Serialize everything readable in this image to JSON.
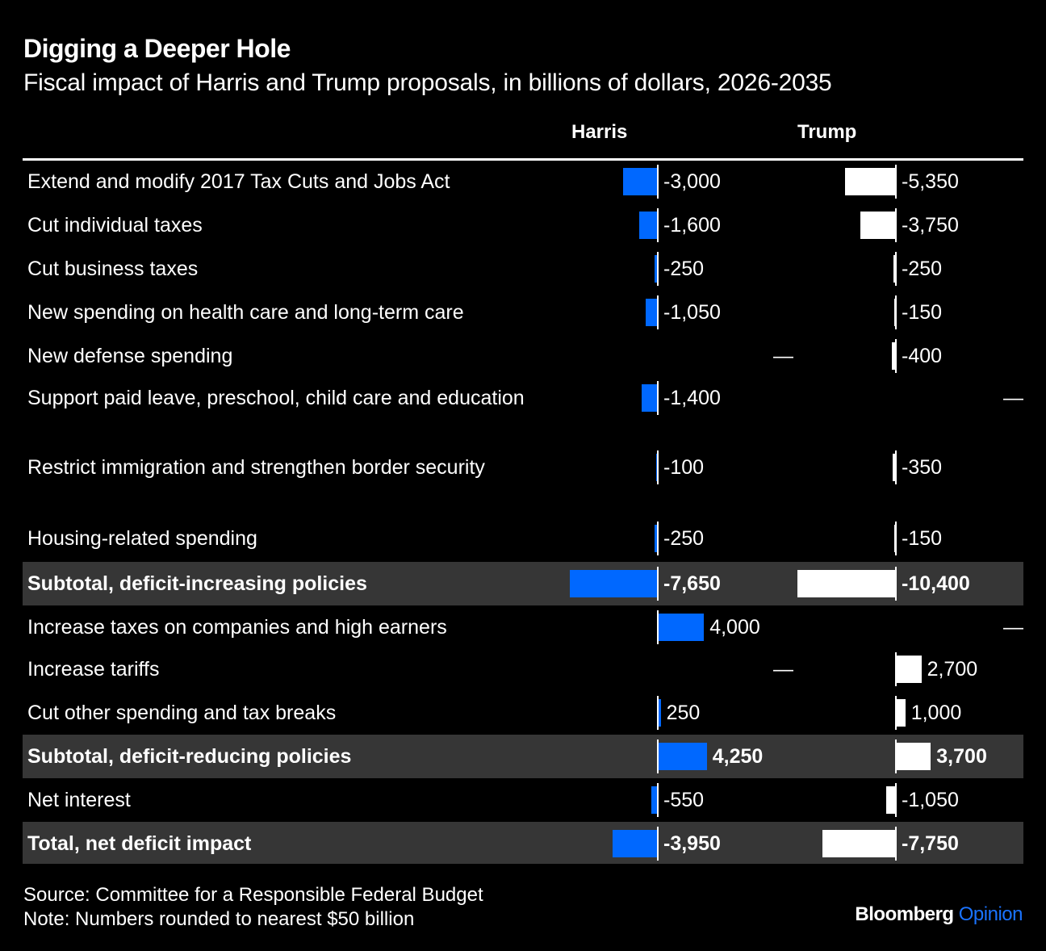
{
  "title": "Digging a Deeper Hole",
  "subtitle": "Fiscal impact of Harris and Trump proposals, in billions of dollars, 2026-2035",
  "columns": [
    "Harris",
    "Trump"
  ],
  "colors": {
    "harris": "#0068ff",
    "trump": "#ffffff",
    "subtotal_bg": "#363636",
    "background": "#000000"
  },
  "footer": {
    "source": "Source: Committee for a Responsible Federal Budget",
    "note": "Note: Numbers rounded to nearest $50 billion",
    "brand_main": "Bloomberg",
    "brand_sub": "Opinion"
  },
  "chart_data": {
    "type": "bar",
    "orientation": "horizontal",
    "title": "Digging a Deeper Hole",
    "subtitle": "Fiscal impact of Harris and Trump proposals, in billions of dollars, 2026-2035",
    "categories": [
      "Extend and modify 2017 Tax Cuts and Jobs Act",
      "Cut individual taxes",
      "Cut business taxes",
      "New spending on health care and long-term care",
      "New defense spending",
      "Support paid leave, preschool, child care and education",
      "Restrict immigration and strengthen border security",
      "Housing-related spending",
      "Subtotal, deficit-increasing policies",
      "Increase taxes on companies and high earners",
      "Increase tariffs",
      "Cut other spending and tax breaks",
      "Subtotal, deficit-reducing policies",
      "Net interest",
      "Total, net deficit impact"
    ],
    "subtotal_rows": [
      8,
      12,
      14
    ],
    "series": [
      {
        "name": "Harris",
        "color": "#0068ff",
        "values": [
          -3000,
          -1600,
          -250,
          -1050,
          null,
          -1400,
          -100,
          -250,
          -7650,
          4000,
          null,
          250,
          4250,
          -550,
          -3950
        ],
        "labels": [
          "-3,000",
          "-1,600",
          "-250",
          "-1,050",
          "—",
          "-1,400",
          "-100",
          "-250",
          "-7,650",
          "4,000",
          "—",
          "250",
          "4,250",
          "-550",
          "-3,950"
        ]
      },
      {
        "name": "Trump",
        "color": "#ffffff",
        "values": [
          -5350,
          -3750,
          -250,
          -150,
          -400,
          null,
          -350,
          -150,
          -10400,
          null,
          2700,
          1000,
          3700,
          -1050,
          -7750
        ],
        "labels": [
          "-5,350",
          "-3,750",
          "-250",
          "-150",
          "-400",
          "—",
          "-350",
          "-150",
          "-10,400",
          "—",
          "2,700",
          "1,000",
          "3,700",
          "-1,050",
          "-7,750"
        ]
      }
    ],
    "xlabel": "",
    "ylabel": "Billions of dollars"
  }
}
